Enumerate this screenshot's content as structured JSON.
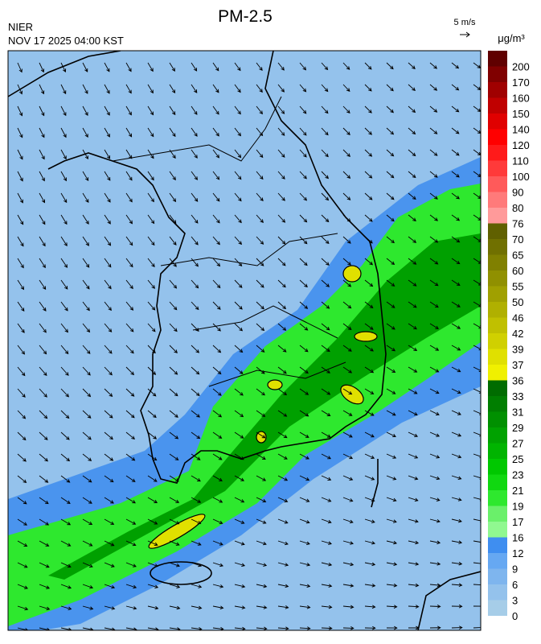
{
  "header": {
    "title": "PM-2.5",
    "agency": "NIER",
    "datetime": "NOV 17 2025 04:00 KST",
    "wind_scale": "5 m/s"
  },
  "colorbar": {
    "unit": "μg/m³",
    "levels": [
      0,
      3,
      6,
      9,
      12,
      16,
      17,
      19,
      21,
      23,
      25,
      27,
      29,
      31,
      33,
      36,
      37,
      39,
      42,
      46,
      50,
      55,
      60,
      65,
      70,
      76,
      80,
      90,
      100,
      110,
      120,
      140,
      150,
      160,
      170,
      200
    ],
    "colors": [
      "#a6cde8",
      "#94c2ec",
      "#7eb5ee",
      "#66a8f2",
      "#3f8ef0",
      "#90f890",
      "#6af06a",
      "#2ee82e",
      "#10d810",
      "#00c800",
      "#00b400",
      "#00a200",
      "#009000",
      "#007e00",
      "#006c00",
      "#f0f000",
      "#e0e000",
      "#d0d000",
      "#c0c000",
      "#b0b000",
      "#a0a000",
      "#909000",
      "#808000",
      "#707000",
      "#606000",
      "#ff9a9a",
      "#ff7a7a",
      "#ff5a5a",
      "#ff3a3a",
      "#ff1a1a",
      "#ff0000",
      "#e00000",
      "#c00000",
      "#a00000",
      "#800000",
      "#600000"
    ]
  }
}
